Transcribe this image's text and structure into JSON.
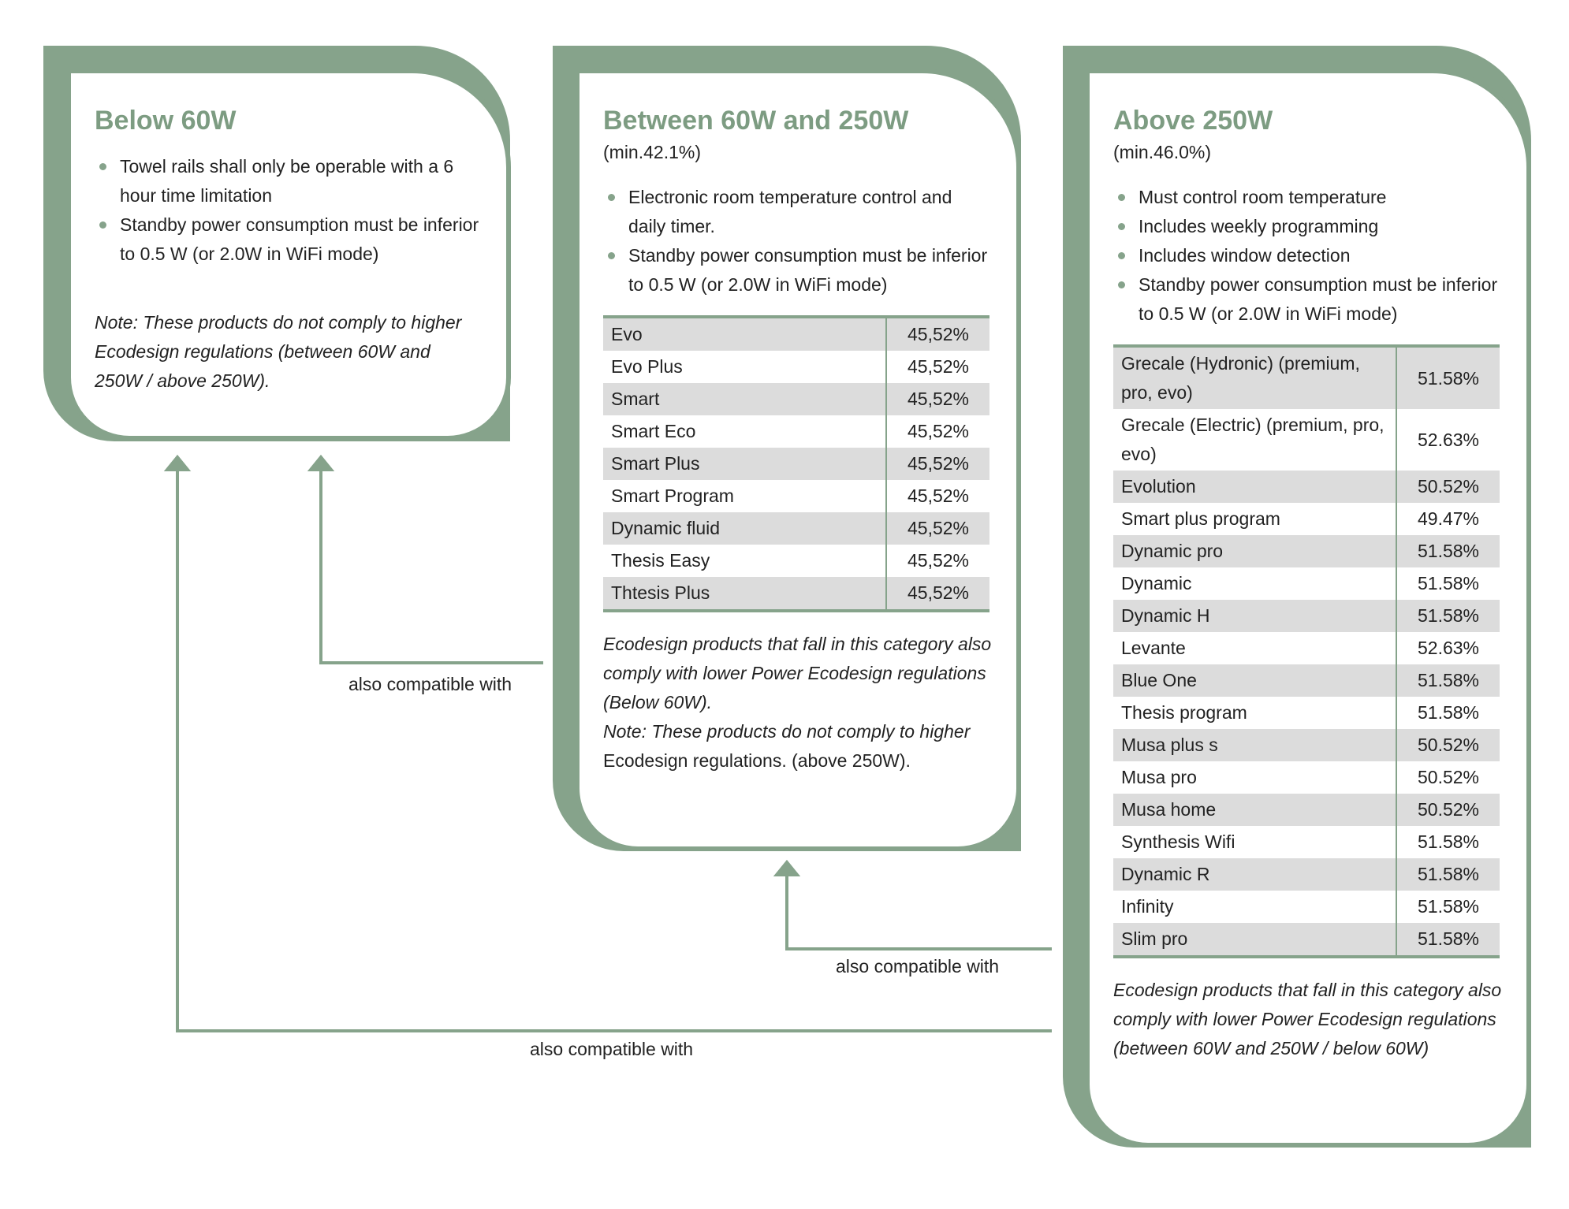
{
  "boxes": [
    {
      "title": "Below 60W",
      "bullets": [
        "Towel rails shall only be operable with a 6 hour time limitation",
        "Standby power consumption must be inferior to 0.5 W (or 2.0W in WiFi mode)"
      ],
      "note": [
        "Note: These products do not comply to higher Ecodesign regulations (between 60W and 250W / above 250W)."
      ]
    },
    {
      "title": "Between 60W and 250W",
      "subtitle": "(min.42.1%)",
      "bullets": [
        "Electronic room temperature control and daily timer.",
        "Standby power consumption must be inferior to 0.5 W (or 2.0W in WiFi mode)"
      ],
      "table": [
        [
          "Evo",
          "45,52%"
        ],
        [
          "Evo Plus",
          "45,52%"
        ],
        [
          "Smart",
          "45,52%"
        ],
        [
          "Smart Eco",
          "45,52%"
        ],
        [
          "Smart Plus",
          "45,52%"
        ],
        [
          "Smart Program",
          "45,52%"
        ],
        [
          "Dynamic fluid",
          "45,52%"
        ],
        [
          "Thesis Easy",
          "45,52%"
        ],
        [
          "Thtesis Plus",
          "45,52%"
        ]
      ],
      "note": [
        "Ecodesign products that fall in this category also comply with lower Power Ecodesign regulations (Below 60W).",
        "Note: These products do not comply to higher",
        "Ecodesign regulations. (above 250W)."
      ]
    },
    {
      "title": "Above 250W",
      "subtitle": "(min.46.0%)",
      "bullets": [
        "Must control room temperature",
        "Includes weekly programming",
        "Includes window detection",
        "Standby power consumption must be inferior to 0.5 W (or 2.0W in WiFi mode)"
      ],
      "table": [
        [
          "Grecale (Hydronic) (premium, pro, evo)",
          "51.58%"
        ],
        [
          "Grecale (Electric) (premium, pro, evo)",
          "52.63%"
        ],
        [
          "Evolution",
          "50.52%"
        ],
        [
          "Smart plus program",
          "49.47%"
        ],
        [
          "Dynamic pro",
          "51.58%"
        ],
        [
          "Dynamic",
          "51.58%"
        ],
        [
          "Dynamic H",
          "51.58%"
        ],
        [
          "Levante",
          "52.63%"
        ],
        [
          "Blue One",
          "51.58%"
        ],
        [
          "Thesis program",
          "51.58%"
        ],
        [
          "Musa plus s",
          "50.52%"
        ],
        [
          "Musa pro",
          "50.52%"
        ],
        [
          "Musa home",
          "50.52%"
        ],
        [
          "Synthesis Wifi",
          "51.58%"
        ],
        [
          "Dynamic R",
          "51.58%"
        ],
        [
          "Infinity",
          "51.58%"
        ],
        [
          "Slim pro",
          "51.58%"
        ]
      ],
      "note": [
        "Ecodesign products that fall in this category also comply with lower Power Ecodesign regulations (between 60W and 250W / below 60W)"
      ]
    }
  ],
  "arrows": [
    "also compatible with",
    "also compatible with",
    "also compatible with"
  ]
}
